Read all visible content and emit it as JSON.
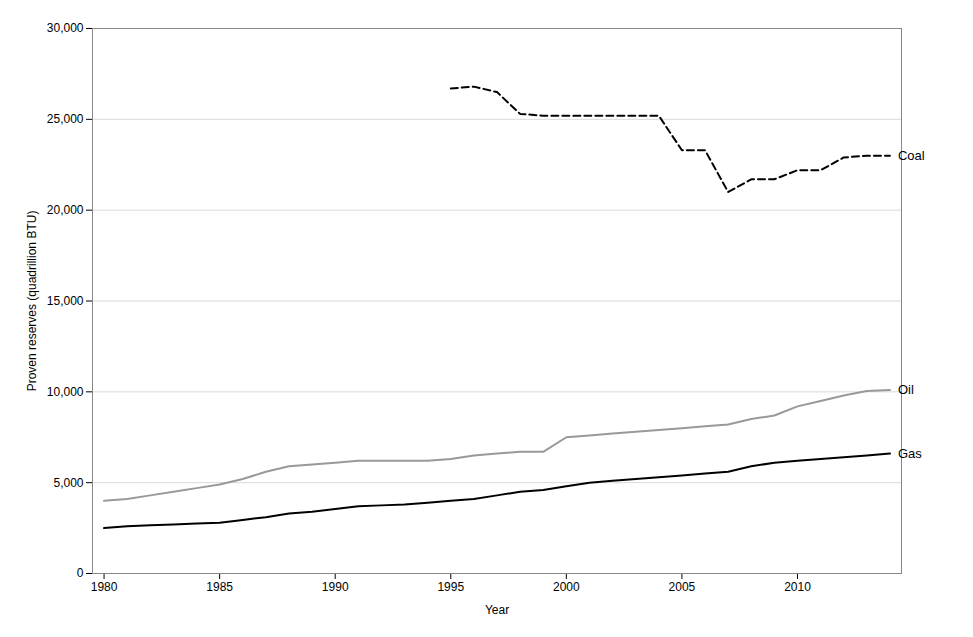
{
  "chart_data": {
    "type": "line",
    "x": [
      1980,
      1981,
      1982,
      1983,
      1984,
      1985,
      1986,
      1987,
      1988,
      1989,
      1990,
      1991,
      1992,
      1993,
      1994,
      1995,
      1996,
      1997,
      1998,
      1999,
      2000,
      2001,
      2002,
      2003,
      2004,
      2005,
      2006,
      2007,
      2008,
      2009,
      2010,
      2011,
      2012,
      2013,
      2014
    ],
    "series": [
      {
        "name": "Oil",
        "color": "#999999",
        "line_style": "solid",
        "values": [
          4000,
          4100,
          4300,
          4500,
          4700,
          4900,
          5200,
          5600,
          5900,
          6000,
          6100,
          6200,
          6200,
          6200,
          6200,
          6300,
          6500,
          6600,
          6700,
          6700,
          7500,
          7600,
          7700,
          7800,
          7900,
          8000,
          8100,
          8200,
          8500,
          8700,
          9200,
          9500,
          9800,
          10050,
          10100
        ]
      },
      {
        "name": "Gas",
        "color": "#000000",
        "line_style": "solid",
        "values": [
          2500,
          2600,
          2650,
          2700,
          2750,
          2800,
          2950,
          3100,
          3300,
          3400,
          3550,
          3700,
          3750,
          3800,
          3900,
          4000,
          4100,
          4300,
          4500,
          4600,
          4800,
          5000,
          5100,
          5200,
          5300,
          5400,
          5500,
          5600,
          5900,
          6100,
          6200,
          6300,
          6400,
          6500,
          6600
        ]
      },
      {
        "name": "Coal",
        "color": "#000000",
        "line_style": "dashed",
        "values": [
          null,
          null,
          null,
          null,
          null,
          null,
          null,
          null,
          null,
          null,
          null,
          null,
          null,
          null,
          null,
          26700,
          26800,
          26500,
          25300,
          25200,
          25200,
          25200,
          25200,
          25200,
          25200,
          23300,
          23300,
          21000,
          21700,
          21700,
          22200,
          22200,
          22900,
          23000,
          23000
        ]
      }
    ],
    "xlabel": "Year",
    "ylabel": "Proven reserves (quadrillion BTU)",
    "xlim": [
      1979.5,
      2014.5
    ],
    "xticks": [
      1980,
      1985,
      1990,
      1995,
      2000,
      2005,
      2010
    ],
    "ylim": [
      0,
      30000
    ],
    "yticks": [
      0,
      {
        "value": 5000,
        "label": "5,000"
      },
      {
        "value": 10000,
        "label": "10,000"
      },
      {
        "value": 15000,
        "label": "15,000"
      },
      {
        "value": 20000,
        "label": "20,000"
      },
      {
        "value": 25000,
        "label": "25,000"
      },
      {
        "value": 30000,
        "label": "30,000"
      }
    ],
    "grid": true
  }
}
